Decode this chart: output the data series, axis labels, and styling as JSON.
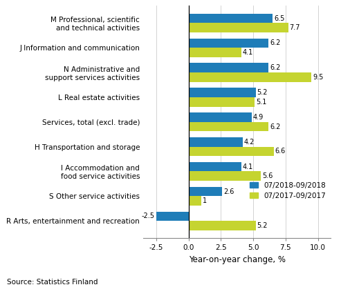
{
  "categories": [
    "R Arts, entertainment and recreation",
    "S Other service activities",
    "I Accommodation and\nfood service activities",
    "H Transportation and storage",
    "Services, total (excl. trade)",
    "L Real estate activities",
    "N Administrative and\nsupport services activities",
    "J Information and communication",
    "M Professional, scientific\nand technical activities"
  ],
  "series1_label": "07/2018-09/2018",
  "series2_label": "07/2017-09/2017",
  "series1_color": "#1F7DB8",
  "series2_color": "#C5D430",
  "series1_values": [
    -2.5,
    2.6,
    4.1,
    4.2,
    4.9,
    5.2,
    6.2,
    6.2,
    6.5
  ],
  "series2_values": [
    5.2,
    1.0,
    5.6,
    6.6,
    6.2,
    5.1,
    9.5,
    4.1,
    7.7
  ],
  "xlabel": "Year-on-year change, %",
  "xlim": [
    -3.5,
    11.0
  ],
  "xticks": [
    -2.5,
    0.0,
    2.5,
    5.0,
    7.5,
    10.0
  ],
  "xtick_labels": [
    "-2.5",
    "0.0",
    "2.5",
    "5.0",
    "7.5",
    "10.0"
  ],
  "source_text": "Source: Statistics Finland",
  "bar_height": 0.38,
  "label_fontsize": 7,
  "tick_fontsize": 7.5,
  "xlabel_fontsize": 8.5,
  "source_fontsize": 7.5,
  "legend_fontsize": 7.5
}
